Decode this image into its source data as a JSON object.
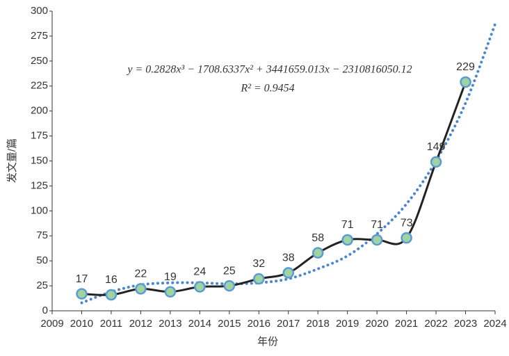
{
  "chart_data": {
    "type": "line",
    "x_label": "年份",
    "y_label": "发文量/篇",
    "annotations": [
      "y = 0.2828x³ − 1708.6337x² + 3441659.013x − 2310816050.12",
      "R² = 0.9454"
    ],
    "xlim": [
      2009,
      2024
    ],
    "ylim": [
      0,
      300
    ],
    "xticks": [
      2009,
      2010,
      2011,
      2012,
      2013,
      2014,
      2015,
      2016,
      2017,
      2018,
      2019,
      2020,
      2021,
      2022,
      2023,
      2024
    ],
    "yticks": [
      0,
      25,
      50,
      75,
      100,
      125,
      150,
      175,
      200,
      225,
      250,
      275,
      300
    ],
    "grid": false,
    "series": [
      {
        "style": "solid",
        "color": "#222222",
        "marker_fill": "#9fd3a0",
        "marker_stroke": "#5b9bd5",
        "data_labels": true,
        "x": [
          2010,
          2011,
          2012,
          2013,
          2014,
          2015,
          2016,
          2017,
          2018,
          2019,
          2020,
          2021,
          2022,
          2023
        ],
        "values": [
          17,
          16,
          22,
          19,
          24,
          25,
          32,
          38,
          58,
          71,
          71,
          73,
          149,
          229
        ]
      },
      {
        "style": "dotted",
        "color": "#4a86d0",
        "x": [
          2010,
          2011,
          2012,
          2013,
          2014,
          2015,
          2016,
          2017,
          2018,
          2019,
          2020,
          2021,
          2022,
          2023,
          2024
        ],
        "values": [
          8,
          19,
          26,
          28,
          28,
          27,
          28,
          32,
          42,
          55,
          77,
          107,
          150,
          208,
          287
        ]
      }
    ]
  }
}
